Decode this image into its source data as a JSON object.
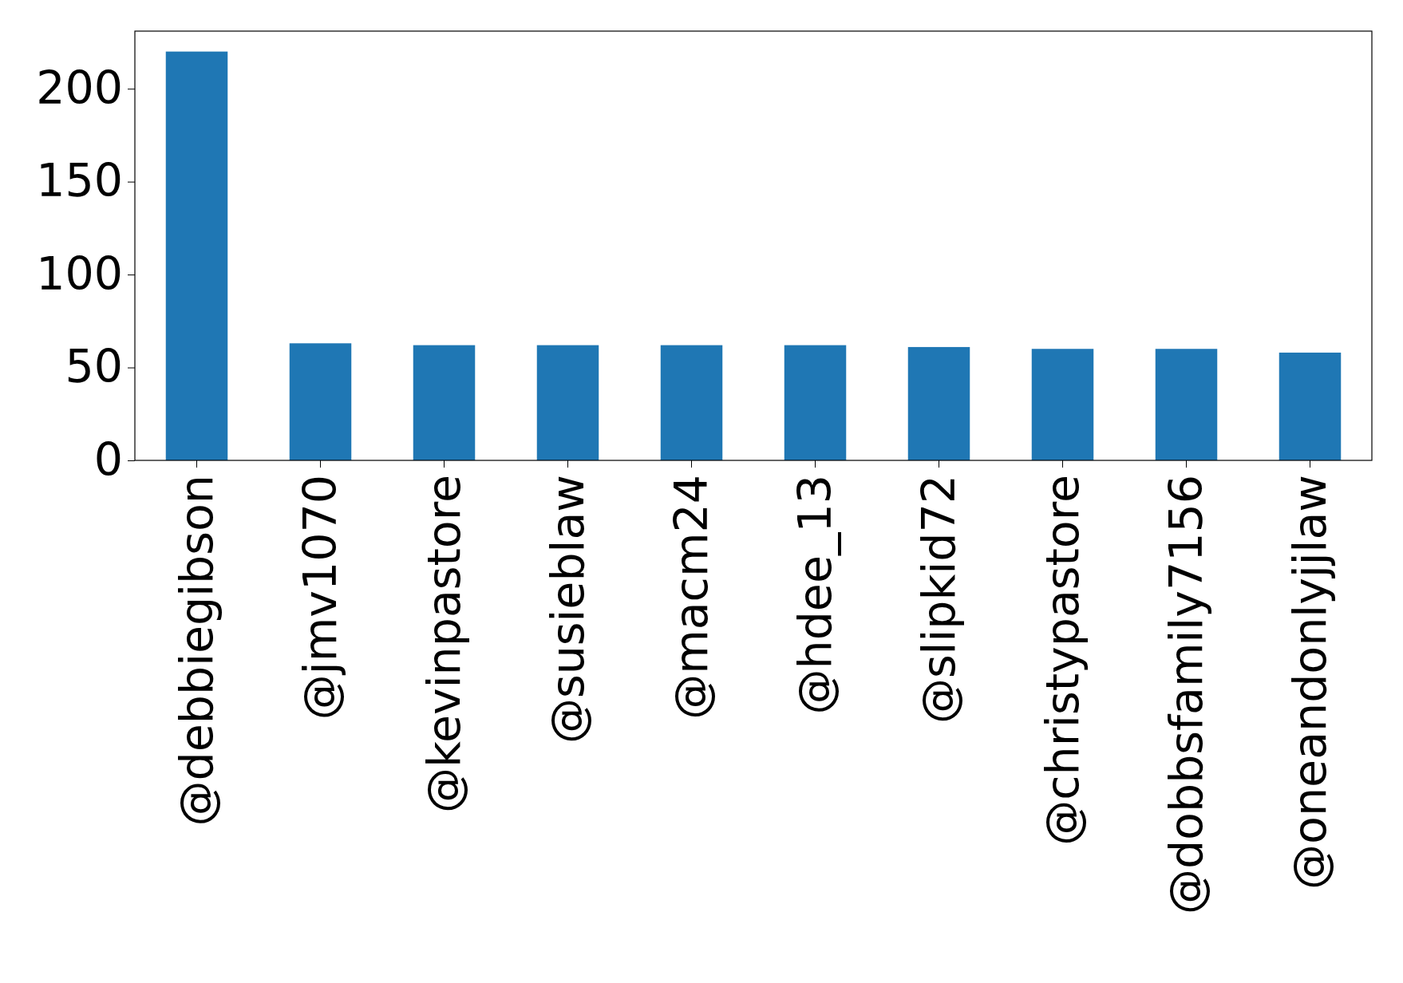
{
  "chart_data": {
    "type": "bar",
    "categories": [
      "@debbiegibson",
      "@jmv1070",
      "@kevinpastore",
      "@susieblaw",
      "@macm24",
      "@hdee_13",
      "@slipkid72",
      "@christypastore",
      "@dobbsfamily7156",
      "@oneandonlyjjlaw"
    ],
    "values": [
      220,
      63,
      62,
      62,
      62,
      62,
      61,
      60,
      60,
      58
    ],
    "color": "#1f77b4",
    "ylim": [
      0,
      231
    ],
    "yticks": [
      0,
      50,
      100,
      150,
      200
    ],
    "grid": false
  }
}
